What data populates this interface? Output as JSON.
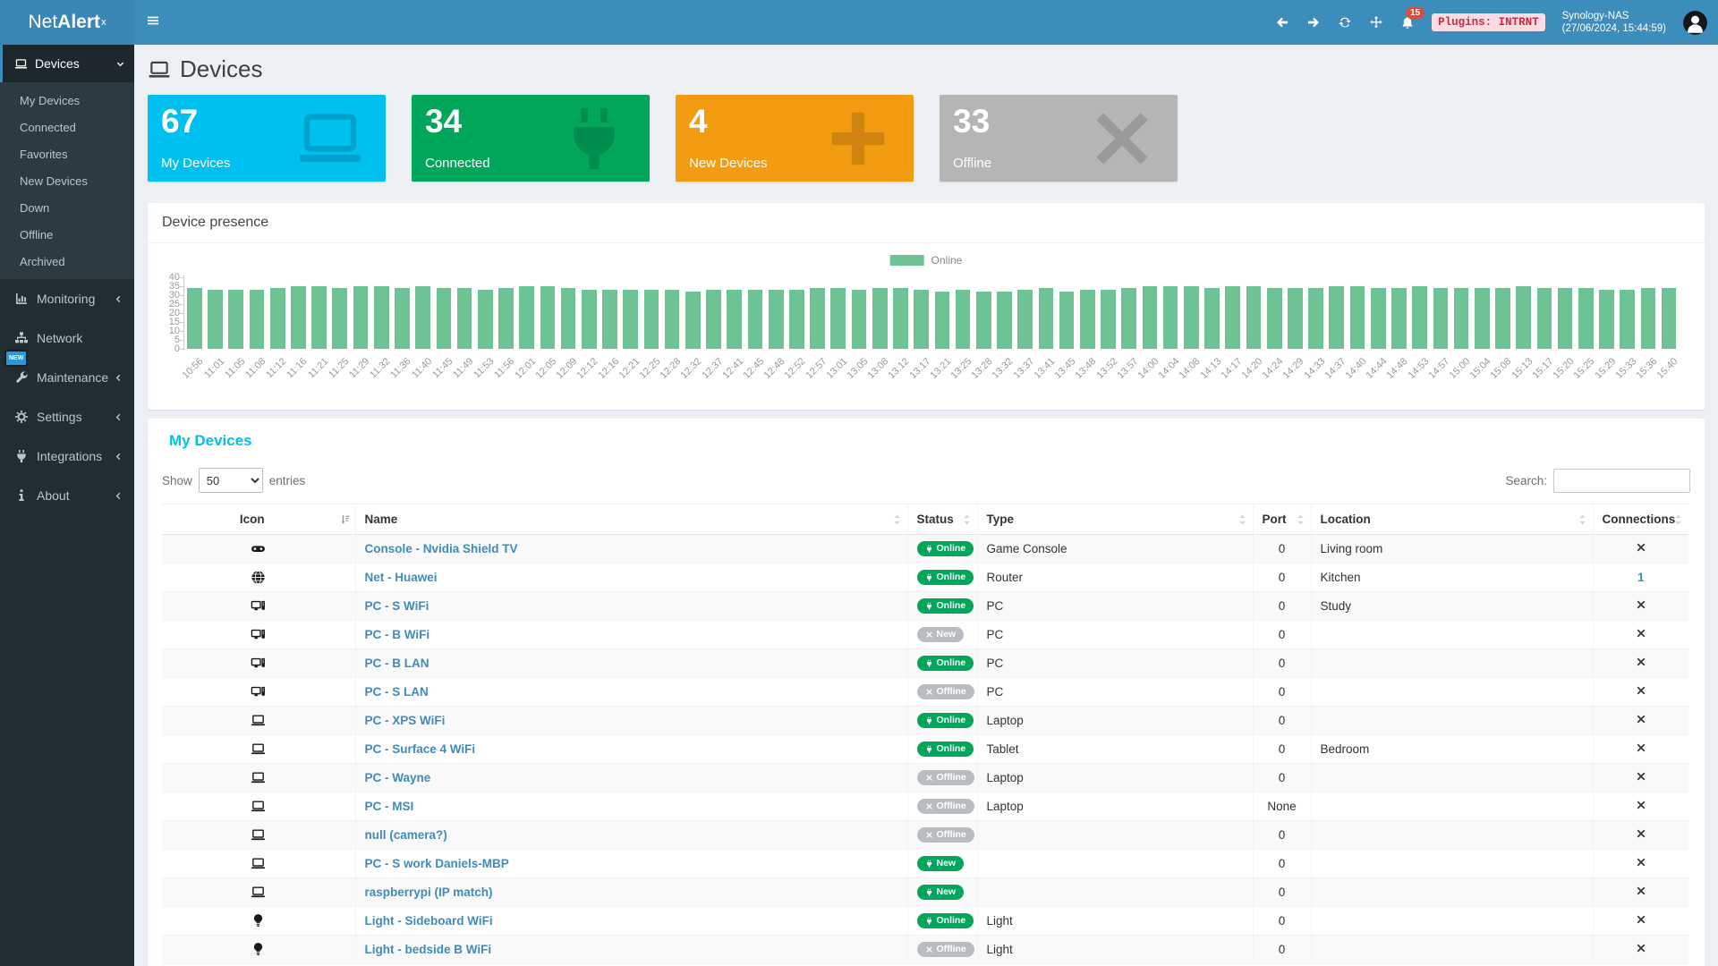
{
  "colors": {
    "navbar_blue": "#3c8dbc",
    "info_cyan": "#00c0ef",
    "success_green": "#00a65a",
    "warning_orange": "#f39c12",
    "offline_gray": "#b5b5b5",
    "bar_green": "#6dc394",
    "danger_red": "#dd4b39",
    "pill_gray": "#b8bdc4"
  },
  "navbar": {
    "brand_prefix": "Net",
    "brand_bold": "Alert",
    "brand_sup": "x",
    "menu_icon": "hamburger",
    "nav_icons": [
      {
        "name": "arrow-left-icon",
        "icon": "arrowleft"
      },
      {
        "name": "arrow-right-icon",
        "icon": "arrowright"
      },
      {
        "name": "refresh-icon",
        "icon": "sync"
      },
      {
        "name": "move-icon",
        "icon": "move"
      }
    ],
    "bell_icon": "bell",
    "notification_count": "15",
    "plugins_badge": "Plugins: INTRNT",
    "host_name": "Synology-NAS",
    "host_time": "(27/06/2024, 15:44:59)",
    "avatar_icon": "user"
  },
  "sidebar": {
    "active": {
      "label": "Devices",
      "icon": "laptop",
      "chevron": "down"
    },
    "submenu": [
      "My Devices",
      "Connected",
      "Favorites",
      "New Devices",
      "Down",
      "Offline",
      "Archived"
    ],
    "update_badge": "NEW",
    "items": [
      {
        "label": "Monitoring",
        "icon": "chart",
        "chevron": "left"
      },
      {
        "label": "Network",
        "icon": "sitemap",
        "chevron": ""
      },
      {
        "label": "Maintenance",
        "icon": "wrench",
        "chevron": "left"
      },
      {
        "label": "Settings",
        "icon": "gear",
        "chevron": "left"
      },
      {
        "label": "Integrations",
        "icon": "plug",
        "chevron": "left"
      },
      {
        "label": "About",
        "icon": "infoi",
        "chevron": "left"
      }
    ]
  },
  "page": {
    "title": "Devices",
    "title_icon": "laptop"
  },
  "info_boxes": [
    {
      "value": "67",
      "label": "My Devices",
      "color": "#00c0ef",
      "icon": "laptop"
    },
    {
      "value": "34",
      "label": "Connected",
      "color": "#00a65a",
      "icon": "plug"
    },
    {
      "value": "4",
      "label": "New Devices",
      "color": "#f39c12",
      "icon": "plus"
    },
    {
      "value": "33",
      "label": "Offline",
      "color": "#b5b5b5",
      "icon": "xmark"
    }
  ],
  "chart_card": {
    "title": "Device presence"
  },
  "chart_data": {
    "type": "bar",
    "title": "Device presence",
    "legend": [
      {
        "label": "Online",
        "color": "#6dc394"
      }
    ],
    "legend_position": "top-center",
    "ylim": [
      0,
      40
    ],
    "yticks": [
      0,
      5,
      10,
      15,
      20,
      25,
      30,
      35,
      40
    ],
    "grid": false,
    "xlabel": "",
    "ylabel": "",
    "categories": [
      "10:56",
      "11:01",
      "11:05",
      "11:08",
      "11:12",
      "11:16",
      "11:21",
      "11:25",
      "11:29",
      "11:32",
      "11:36",
      "11:40",
      "11:45",
      "11:49",
      "11:53",
      "11:56",
      "12:01",
      "12:05",
      "12:09",
      "12:12",
      "12:16",
      "12:21",
      "12:25",
      "12:28",
      "12:32",
      "12:37",
      "12:41",
      "12:45",
      "12:48",
      "12:52",
      "12:57",
      "13:01",
      "13:05",
      "13:08",
      "13:12",
      "13:17",
      "13:21",
      "13:25",
      "13:28",
      "13:32",
      "13:37",
      "13:41",
      "13:45",
      "13:48",
      "13:52",
      "13:57",
      "14:00",
      "14:04",
      "14:08",
      "14:13",
      "14:17",
      "14:20",
      "14:24",
      "14:29",
      "14:33",
      "14:37",
      "14:40",
      "14:44",
      "14:48",
      "14:53",
      "14:57",
      "15:00",
      "15:04",
      "15:08",
      "15:13",
      "15:17",
      "15:20",
      "15:25",
      "15:29",
      "15:33",
      "15:36",
      "15:40"
    ],
    "series": [
      {
        "name": "Online",
        "values": [
          34,
          33,
          33,
          33,
          34,
          35,
          35,
          34,
          35,
          35,
          34,
          35,
          34,
          34,
          33,
          34,
          35,
          35,
          34,
          33,
          33,
          33,
          33,
          33,
          32,
          33,
          33,
          33,
          33,
          33,
          34,
          34,
          33,
          34,
          34,
          33,
          32,
          33,
          32,
          32,
          33,
          34,
          32,
          33,
          33,
          34,
          35,
          35,
          35,
          34,
          35,
          35,
          34,
          34,
          34,
          35,
          35,
          34,
          34,
          35,
          34,
          34,
          34,
          34,
          35,
          34,
          34,
          34,
          33,
          33,
          34,
          34
        ]
      }
    ]
  },
  "table": {
    "title": "My Devices",
    "show_label": "Show",
    "entries_label": "entries",
    "page_length": "50",
    "search_label": "Search:",
    "search_value": "",
    "columns": [
      {
        "label": "Icon",
        "sort": "amount"
      },
      {
        "label": "Name",
        "sort": "both"
      },
      {
        "label": "Status",
        "sort": "both"
      },
      {
        "label": "Type",
        "sort": "both"
      },
      {
        "label": "Port",
        "sort": "both"
      },
      {
        "label": "Location",
        "sort": "both"
      },
      {
        "label": "Connections",
        "sort": "both"
      }
    ],
    "rows": [
      {
        "icon": "gamepad",
        "name": "Console - Nvidia Shield TV",
        "status_label": "Online",
        "status_variant": "online",
        "type": "Game Console",
        "port": "0",
        "location": "Living room",
        "connections": "x"
      },
      {
        "icon": "globe",
        "name": "Net - Huawei",
        "status_label": "Online",
        "status_variant": "online",
        "type": "Router",
        "port": "0",
        "location": "Kitchen",
        "connections": "1"
      },
      {
        "icon": "desktop",
        "name": "PC - S WiFi",
        "status_label": "Online",
        "status_variant": "online",
        "type": "PC",
        "port": "0",
        "location": "Study",
        "connections": "x"
      },
      {
        "icon": "desktop",
        "name": "PC - B WiFi",
        "status_label": "New",
        "status_variant": "new-offline",
        "type": "PC",
        "port": "0",
        "location": "",
        "connections": "x"
      },
      {
        "icon": "desktop",
        "name": "PC - B LAN",
        "status_label": "Online",
        "status_variant": "online",
        "type": "PC",
        "port": "0",
        "location": "",
        "connections": "x"
      },
      {
        "icon": "desktop",
        "name": "PC - S LAN",
        "status_label": "Offline",
        "status_variant": "offline",
        "type": "PC",
        "port": "0",
        "location": "",
        "connections": "x"
      },
      {
        "icon": "laptop",
        "name": "PC - XPS WiFi",
        "status_label": "Online",
        "status_variant": "online",
        "type": "Laptop",
        "port": "0",
        "location": "",
        "connections": "x"
      },
      {
        "icon": "laptop",
        "name": "PC - Surface 4 WiFi",
        "status_label": "Online",
        "status_variant": "online",
        "type": "Tablet",
        "port": "0",
        "location": "Bedroom",
        "connections": "x"
      },
      {
        "icon": "laptop",
        "name": "PC - Wayne",
        "status_label": "Offline",
        "status_variant": "offline",
        "type": "Laptop",
        "port": "0",
        "location": "",
        "connections": "x"
      },
      {
        "icon": "laptop",
        "name": "PC - MSI",
        "status_label": "Offline",
        "status_variant": "offline",
        "type": "Laptop",
        "port": "None",
        "location": "",
        "connections": "x"
      },
      {
        "icon": "laptop",
        "name": "null (camera?)",
        "status_label": "Offline",
        "status_variant": "offline",
        "type": "",
        "port": "0",
        "location": "",
        "connections": "x"
      },
      {
        "icon": "laptop",
        "name": "PC - S work Daniels-MBP",
        "status_label": "New",
        "status_variant": "new-online",
        "type": "",
        "port": "0",
        "location": "",
        "connections": "x"
      },
      {
        "icon": "laptop",
        "name": "raspberrypi (IP match)",
        "status_label": "New",
        "status_variant": "new-online",
        "type": "",
        "port": "0",
        "location": "",
        "connections": "x"
      },
      {
        "icon": "lightbulb",
        "name": "Light - Sideboard WiFi",
        "status_label": "Online",
        "status_variant": "online",
        "type": "Light",
        "port": "0",
        "location": "",
        "connections": "x"
      },
      {
        "icon": "lightbulb",
        "name": "Light - bedside B WiFi",
        "status_label": "Offline",
        "status_variant": "offline",
        "type": "Light",
        "port": "0",
        "location": "",
        "connections": "x"
      }
    ]
  }
}
